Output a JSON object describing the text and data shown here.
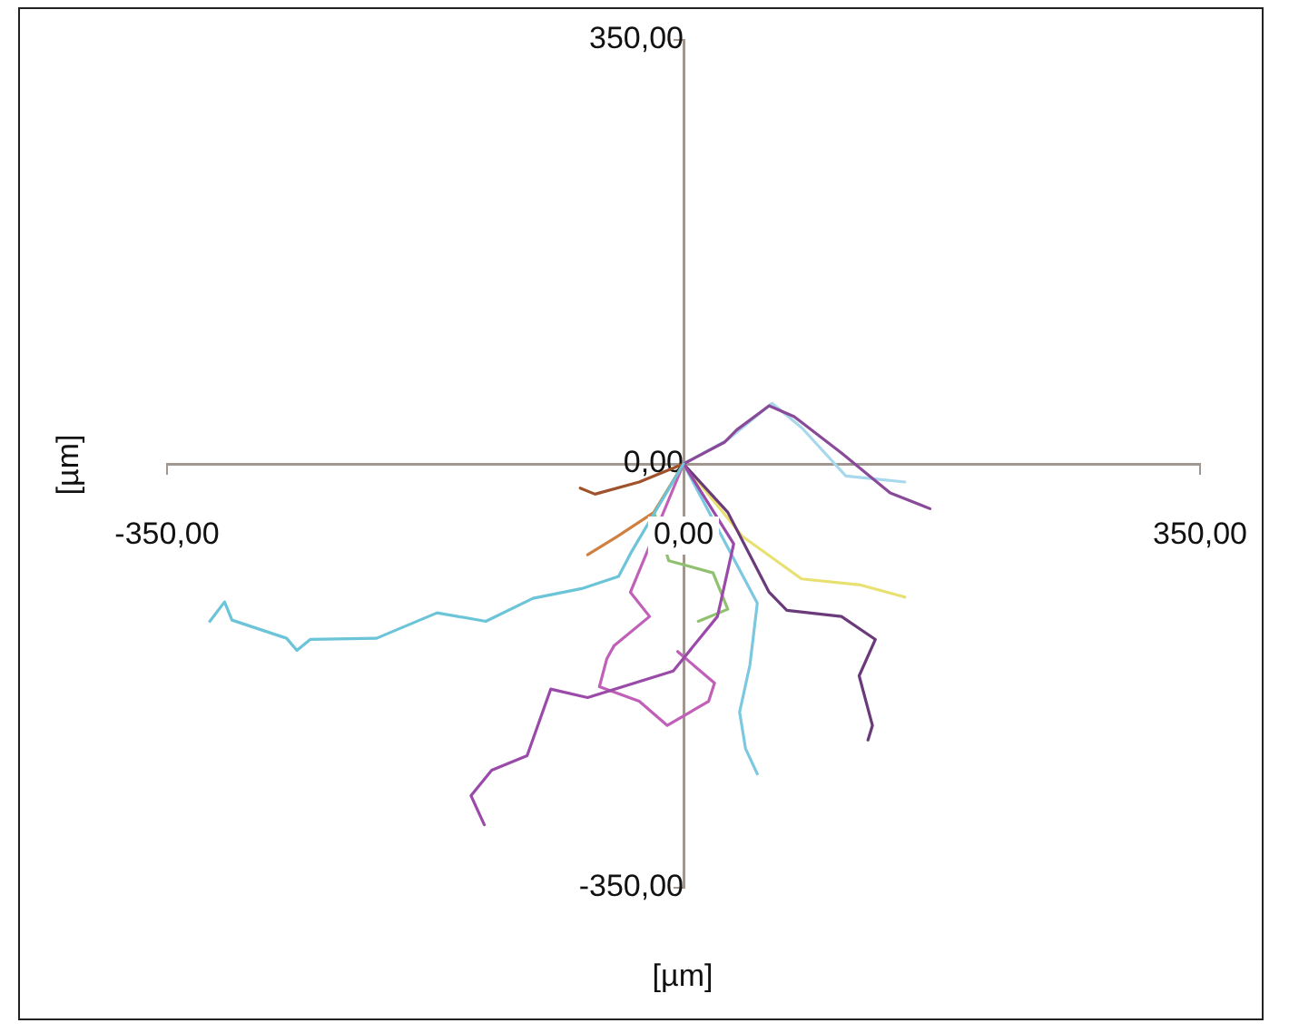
{
  "chart_data": {
    "type": "line",
    "xlabel": "[µm]",
    "ylabel": "[µm]",
    "grid": false,
    "legend": false,
    "xlim": [
      -350,
      350
    ],
    "ylim": [
      -350,
      350
    ],
    "xticks": [
      {
        "value": -350,
        "label": "-350,00"
      },
      {
        "value": 0,
        "label": "0,00"
      },
      {
        "value": 350,
        "label": "350,00"
      }
    ],
    "yticks": [
      {
        "value": -350,
        "label": "-350,00"
      },
      {
        "value": 0,
        "label": "0,00"
      },
      {
        "value": 350,
        "label": "350,00"
      }
    ],
    "series": [
      {
        "color": "#6cc4d8",
        "x": [
          0,
          -35,
          -44,
          -69,
          -102,
          -134,
          -167,
          -208,
          -253,
          -262,
          -269,
          -306,
          -311,
          -321
        ],
        "values": [
          0,
          -72,
          -93,
          -103,
          -111,
          -130,
          -123,
          -144,
          -145,
          -154,
          -144,
          -129,
          -114,
          -130
        ]
      },
      {
        "color": "#8a4a9a",
        "x": [
          0,
          28,
          36,
          58,
          75,
          107,
          140,
          167
        ],
        "values": [
          0,
          18,
          28,
          48,
          39,
          9,
          -24,
          -37
        ]
      },
      {
        "color": "#9a4aa8",
        "x": [
          0,
          34,
          23,
          -7,
          -65,
          -90,
          -106,
          -130,
          -144,
          -135
        ],
        "values": [
          0,
          -66,
          -126,
          -171,
          -193,
          -186,
          -241,
          -253,
          -274,
          -298
        ]
      },
      {
        "color": "#6a3a7a",
        "x": [
          0,
          30,
          58,
          70,
          107,
          130,
          119,
          128,
          125
        ],
        "values": [
          0,
          -40,
          -106,
          -121,
          -126,
          -145,
          -175,
          -216,
          -228
        ]
      },
      {
        "color": "#7cc8e0",
        "x": [
          0,
          33,
          50,
          45,
          38,
          42,
          50
        ],
        "values": [
          0,
          -76,
          -115,
          -166,
          -205,
          -235,
          -256
        ]
      },
      {
        "color": "#c060b8",
        "x": [
          0,
          -36,
          -23,
          -47,
          -52,
          -57,
          -30,
          -11,
          17,
          21,
          -4
        ],
        "values": [
          0,
          -106,
          -126,
          -150,
          -161,
          -184,
          -196,
          -216,
          -196,
          -181,
          -155
        ]
      },
      {
        "color": "#a8d8ec",
        "x": [
          0,
          30,
          60,
          80,
          110,
          150
        ],
        "values": [
          0,
          20,
          50,
          30,
          -10,
          -15
        ]
      },
      {
        "color": "#a0522d",
        "x": [
          0,
          -30,
          -60,
          -70
        ],
        "values": [
          0,
          -15,
          -25,
          -20
        ]
      },
      {
        "color": "#d08040",
        "x": [
          0,
          -20,
          -45,
          -65
        ],
        "values": [
          0,
          -40,
          -60,
          -75
        ]
      },
      {
        "color": "#e8e070",
        "x": [
          0,
          40,
          80,
          120,
          150
        ],
        "values": [
          0,
          -60,
          -95,
          -100,
          -110
        ]
      },
      {
        "color": "#90c070",
        "x": [
          0,
          -20,
          -10,
          20,
          30,
          10
        ],
        "values": [
          0,
          -40,
          -80,
          -90,
          -120,
          -130
        ]
      }
    ]
  }
}
